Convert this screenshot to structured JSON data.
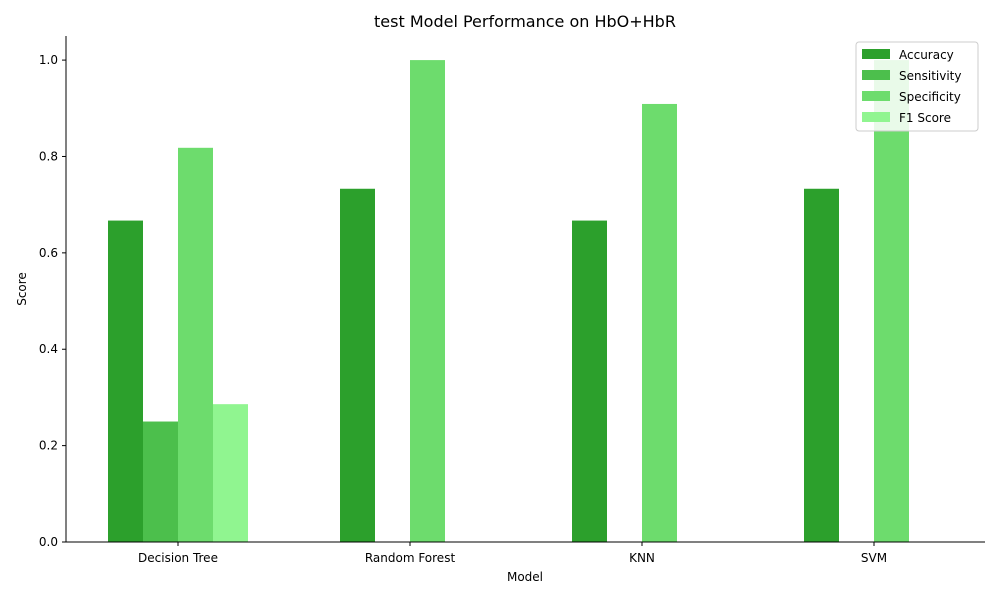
{
  "chart_data": {
    "type": "bar",
    "title": "test Model Performance on HbO+HbR",
    "xlabel": "Model",
    "ylabel": "Score",
    "categories": [
      "Decision Tree",
      "Random Forest",
      "KNN",
      "SVM"
    ],
    "series": [
      {
        "name": "Accuracy",
        "color": "#2ca02c",
        "values": [
          0.667,
          0.733,
          0.667,
          0.733
        ]
      },
      {
        "name": "Sensitivity",
        "color": "#4cbf4c",
        "values": [
          0.25,
          0.0,
          0.0,
          0.0
        ]
      },
      {
        "name": "Specificity",
        "color": "#6ddc6d",
        "values": [
          0.818,
          1.0,
          0.909,
          1.0
        ]
      },
      {
        "name": "F1 Score",
        "color": "#90f590",
        "values": [
          0.286,
          0.0,
          0.0,
          0.0
        ]
      }
    ],
    "ylim": [
      0,
      1.05
    ],
    "yticks": [
      "0.0",
      "0.2",
      "0.4",
      "0.6",
      "0.8",
      "1.0"
    ],
    "grid": false,
    "legend_position": "top-right"
  }
}
